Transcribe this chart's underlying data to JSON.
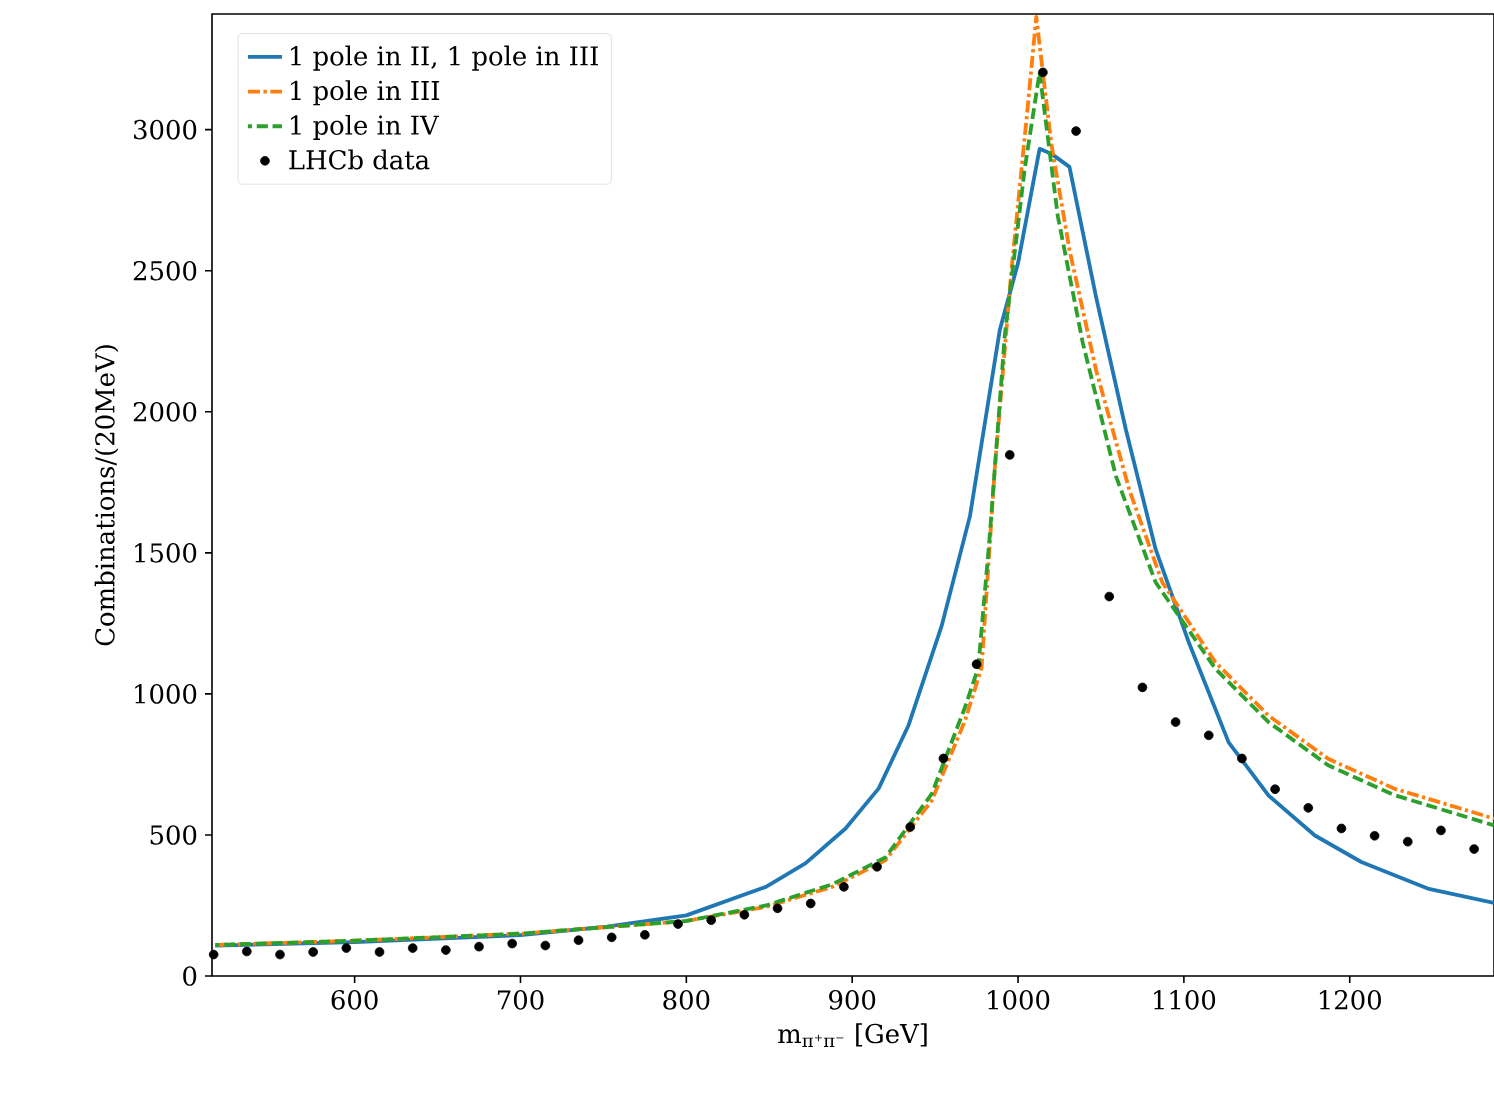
{
  "chart_data": {
    "type": "line",
    "xlabel": "m$_{π⁺π⁻}$ [GeV]",
    "ylabel": "Combinations/(20MeV)",
    "xlim": [
      514,
      1287
    ],
    "ylim": [
      0,
      3410
    ],
    "xticks": [
      600,
      700,
      800,
      900,
      1000,
      1100,
      1200
    ],
    "yticks": [
      0,
      500,
      1000,
      1500,
      2000,
      2500,
      3000
    ],
    "grid": false,
    "legend": "top left",
    "marker": "none",
    "series": [
      {
        "name": "1 pole in II, 1 pole in III",
        "color": "#1f77b4",
        "line_style": "solid",
        "x": [
          516,
          600,
          700,
          752,
          800,
          848,
          872,
          896,
          916,
          934,
          954,
          971,
          989,
          1000,
          1013,
          1020,
          1031,
          1047,
          1065,
          1083,
          1103,
          1127,
          1151,
          1179,
          1207,
          1247,
          1287
        ],
        "values": [
          108,
          120,
          145,
          175,
          215,
          316,
          400,
          523,
          665,
          889,
          1242,
          1630,
          2290,
          2527,
          2932,
          2915,
          2868,
          2408,
          1937,
          1512,
          1182,
          828,
          640,
          498,
          404,
          310,
          259
        ]
      },
      {
        "name": "1 pole in III",
        "color": "#ff7f0e",
        "line_style": "dashdot",
        "x": [
          516,
          600,
          700,
          800,
          848,
          888,
          920,
          948,
          968,
          978,
          986,
          996,
          1006,
          1011,
          1020,
          1031,
          1047,
          1067,
          1087,
          1119,
          1151,
          1187,
          1227,
          1287
        ],
        "values": [
          110,
          125,
          150,
          195,
          245,
          316,
          410,
          622,
          905,
          1092,
          1800,
          2500,
          3090,
          3400,
          2953,
          2575,
          2149,
          1725,
          1395,
          1112,
          923,
          770,
          664,
          558
        ]
      },
      {
        "name": "1 pole in IV",
        "color": "#2ca02c",
        "line_style": "dashed",
        "x": [
          516,
          600,
          700,
          800,
          848,
          888,
          920,
          948,
          968,
          976,
          983,
          992,
          1004,
          1013,
          1024,
          1039,
          1059,
          1083,
          1119,
          1151,
          1187,
          1227,
          1287
        ],
        "values": [
          110,
          125,
          150,
          195,
          250,
          325,
          420,
          646,
          952,
          1092,
          1564,
          2270,
          2860,
          3203,
          2693,
          2245,
          1772,
          1395,
          1089,
          900,
          747,
          641,
          534
        ]
      },
      {
        "name": "LHCb data",
        "type": "scatter",
        "marker": "circle",
        "color": "#000000",
        "x": [
          515,
          535,
          555,
          575,
          595,
          615,
          635,
          655,
          675,
          695,
          715,
          735,
          755,
          775,
          795,
          815,
          835,
          855,
          875,
          895,
          915,
          935,
          955,
          975,
          995,
          1015,
          1035,
          1055,
          1075,
          1095,
          1115,
          1135,
          1155,
          1175,
          1195,
          1215,
          1235,
          1255,
          1275
        ],
        "values": [
          76,
          87,
          76,
          85,
          99,
          85,
          99,
          92,
          104,
          115,
          108,
          127,
          137,
          146,
          184,
          198,
          217,
          240,
          257,
          316,
          387,
          528,
          771,
          1105,
          1847,
          3203,
          2995,
          1345,
          1023,
          900,
          853,
          771,
          662,
          596,
          523,
          497,
          476,
          516,
          450
        ]
      }
    ]
  }
}
